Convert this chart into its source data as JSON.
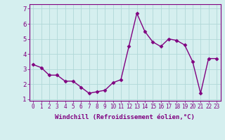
{
  "x": [
    0,
    1,
    2,
    3,
    4,
    5,
    6,
    7,
    8,
    9,
    10,
    11,
    12,
    13,
    14,
    15,
    16,
    17,
    18,
    19,
    20,
    21,
    22,
    23
  ],
  "y": [
    3.3,
    3.1,
    2.6,
    2.6,
    2.2,
    2.2,
    1.8,
    1.4,
    1.5,
    1.6,
    2.1,
    2.3,
    4.5,
    6.7,
    5.5,
    4.8,
    4.5,
    5.0,
    4.9,
    4.6,
    3.5,
    1.4,
    3.7,
    3.7
  ],
  "line_color": "#800080",
  "marker": "D",
  "marker_size": 2.5,
  "xlabel": "Windchill (Refroidissement éolien,°C)",
  "xlabel_fontsize": 6.5,
  "xlim": [
    -0.5,
    23.5
  ],
  "ylim": [
    0.9,
    7.3
  ],
  "yticks": [
    1,
    2,
    3,
    4,
    5,
    6,
    7
  ],
  "xticks": [
    0,
    1,
    2,
    3,
    4,
    5,
    6,
    7,
    8,
    9,
    10,
    11,
    12,
    13,
    14,
    15,
    16,
    17,
    18,
    19,
    20,
    21,
    22,
    23
  ],
  "xtick_labels": [
    "0",
    "1",
    "2",
    "3",
    "4",
    "5",
    "6",
    "7",
    "8",
    "9",
    "10",
    "11",
    "12",
    "13",
    "14",
    "15",
    "16",
    "17",
    "18",
    "19",
    "20",
    "21",
    "22",
    "23"
  ],
  "ytick_fontsize": 6.5,
  "xtick_fontsize": 5.5,
  "bg_color": "#d5efef",
  "grid_color": "#b0d8d8",
  "spine_color": "#800080",
  "tick_color": "#800080",
  "label_color": "#800080",
  "linewidth": 1.0
}
